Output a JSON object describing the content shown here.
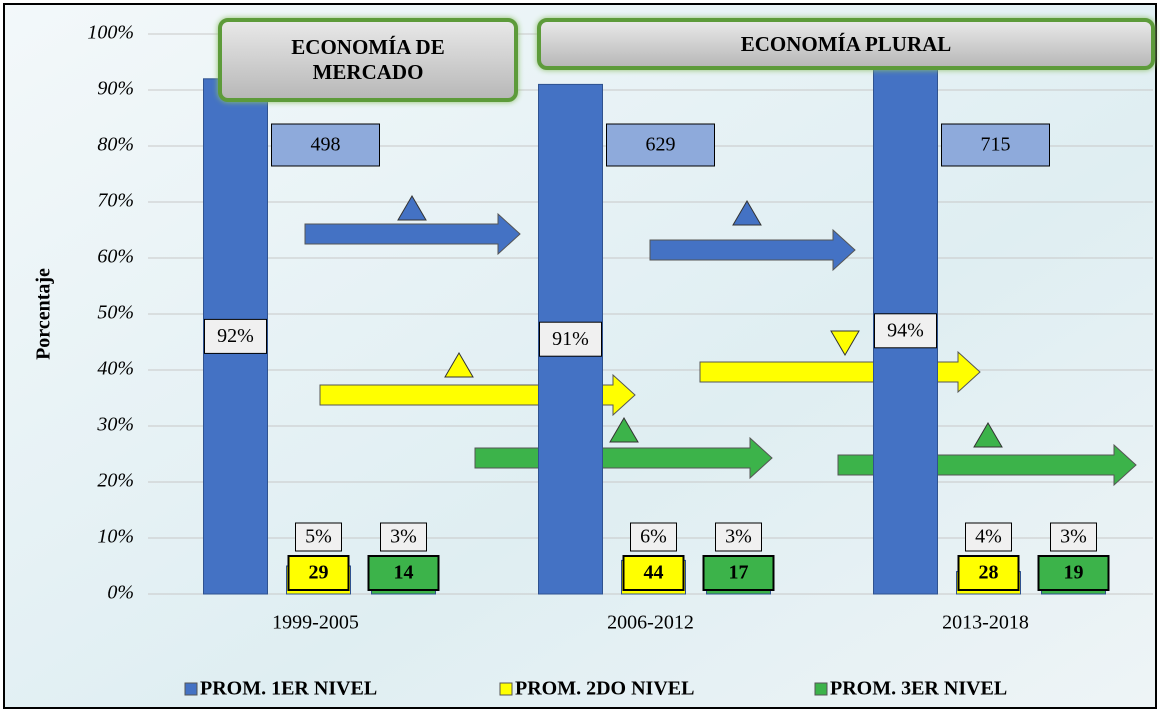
{
  "chart_data": {
    "type": "bar",
    "y_label": "Porcentaje",
    "annotations": [
      "ECONOMÍA DE MERCADO",
      "ECONOMÍA PLURAL"
    ],
    "categories": [
      "1999-2005",
      "2006-2012",
      "2013-2018"
    ],
    "series": [
      {
        "name": "PROM. 1ER NIVEL",
        "color": "#4472c4",
        "values": [
          92,
          91,
          94
        ],
        "value_labels": [
          "92%",
          "91%",
          "94%"
        ],
        "counts": [
          498,
          629,
          715
        ]
      },
      {
        "name": "PROM. 2DO NIVEL",
        "color": "#ffff00",
        "values": [
          5,
          6,
          4
        ],
        "value_labels": [
          "5%",
          "6%",
          "4%"
        ],
        "counts": [
          29,
          44,
          28
        ]
      },
      {
        "name": "PROM. 3ER NIVEL",
        "color": "#3cb34a",
        "values": [
          3,
          3,
          3
        ],
        "value_labels": [
          "3%",
          "3%",
          "3%"
        ],
        "counts": [
          14,
          17,
          19
        ]
      }
    ],
    "ylim": [
      0,
      100
    ],
    "yticks": [
      {
        "value": 0,
        "label": "0%"
      },
      {
        "value": 10,
        "label": "10%"
      },
      {
        "value": 20,
        "label": "20%"
      },
      {
        "value": 30,
        "label": "30%"
      },
      {
        "value": 40,
        "label": "40%"
      },
      {
        "value": 50,
        "label": "50%"
      },
      {
        "value": 60,
        "label": "60%"
      },
      {
        "value": 70,
        "label": "70%"
      },
      {
        "value": 80,
        "label": "80%"
      },
      {
        "value": 90,
        "label": "90%"
      },
      {
        "value": 100,
        "label": "100%"
      }
    ],
    "grid": true
  }
}
